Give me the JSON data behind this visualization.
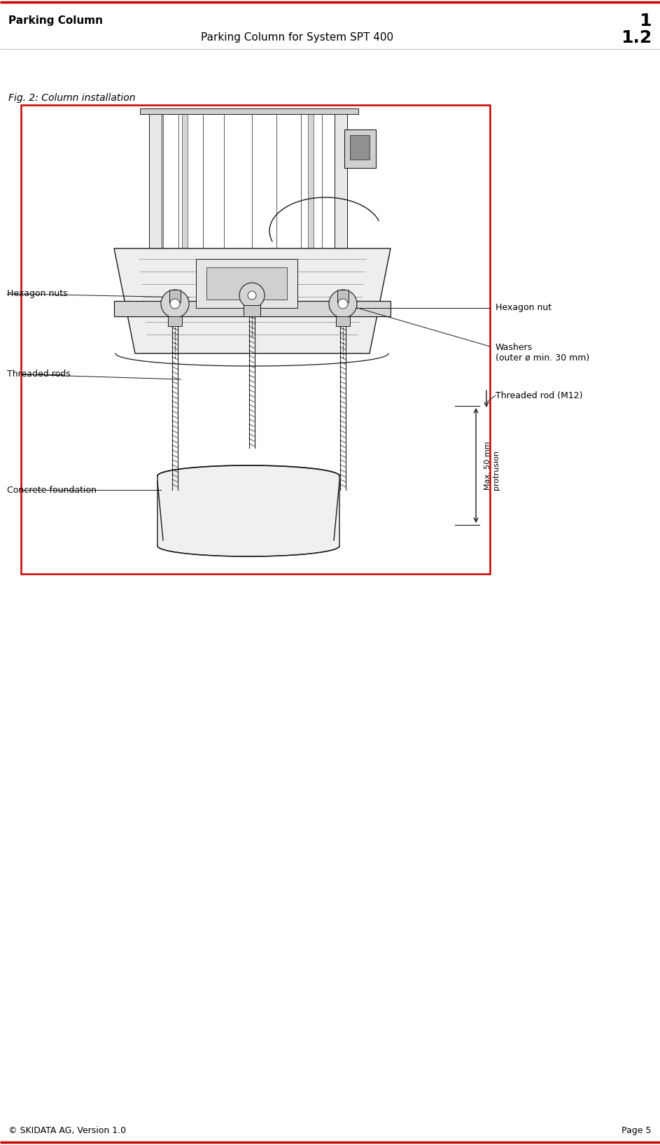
{
  "page_width": 9.43,
  "page_height": 16.36,
  "bg_color": "#ffffff",
  "red_line_color": "#cc0000",
  "header_left_text": "Parking Column",
  "header_right_number": "1",
  "header_center_text": "Parking Column for System SPT 400",
  "header_center_number": "1.2",
  "fig_caption": "Fig. 2: Column installation",
  "footer_left": "© SKIDATA AG, Version 1.0",
  "footer_right": "Page 5",
  "label_hexagon_nuts": "Hexagon nuts",
  "label_hexagon_nut": "Hexagon nut",
  "label_washers": "Washers\n(outer ø min. 30 mm)",
  "label_threaded_rods": "Threaded rods",
  "label_threaded_rod_m12": "Threaded rod (M12)",
  "label_concrete": "Concrete foundation",
  "label_max_protrusion": "Max. 50 mm\nprotrusion"
}
